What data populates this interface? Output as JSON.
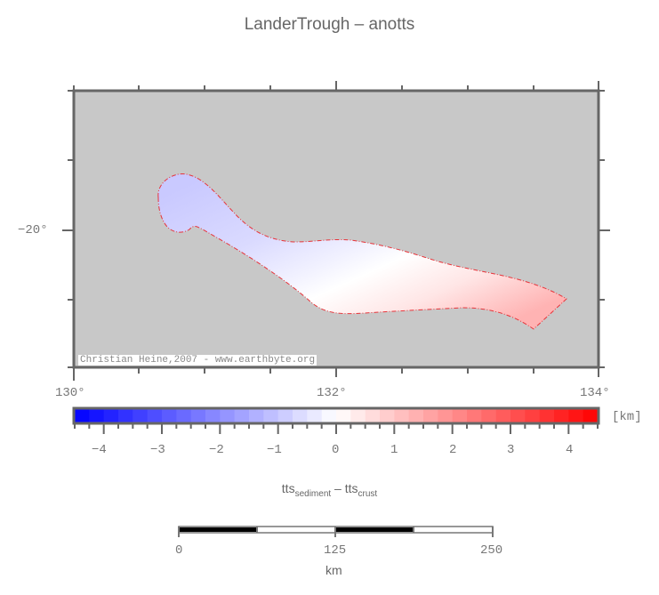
{
  "title": "LanderTrough – anotts",
  "map": {
    "background_color": "#c8c8c8",
    "frame_color": "#666666",
    "outline_color": "#ff0000",
    "lon_min": 130,
    "lon_max": 134,
    "lat_label": "−20°",
    "x_tick_labels": [
      "130°",
      "132°",
      "134°"
    ],
    "credit": "Christian Heine,2007 - www.earthbyte.org"
  },
  "colorbar": {
    "unit": "[km]",
    "min": -4.5,
    "max": 4.5,
    "step": 0.25,
    "tick_labels": [
      "−4",
      "−3",
      "−2",
      "−1",
      "0",
      "1",
      "2",
      "3",
      "4"
    ],
    "low_color": "#0000ff",
    "mid_color": "#ffffff",
    "high_color": "#ff0000"
  },
  "xlabel": {
    "part1": "tts",
    "sub1": "sediment",
    "sep": " – ",
    "part2": "tts",
    "sub2": "crust"
  },
  "scalebar": {
    "labels": [
      "0",
      "125",
      "250"
    ],
    "unit": "km"
  }
}
